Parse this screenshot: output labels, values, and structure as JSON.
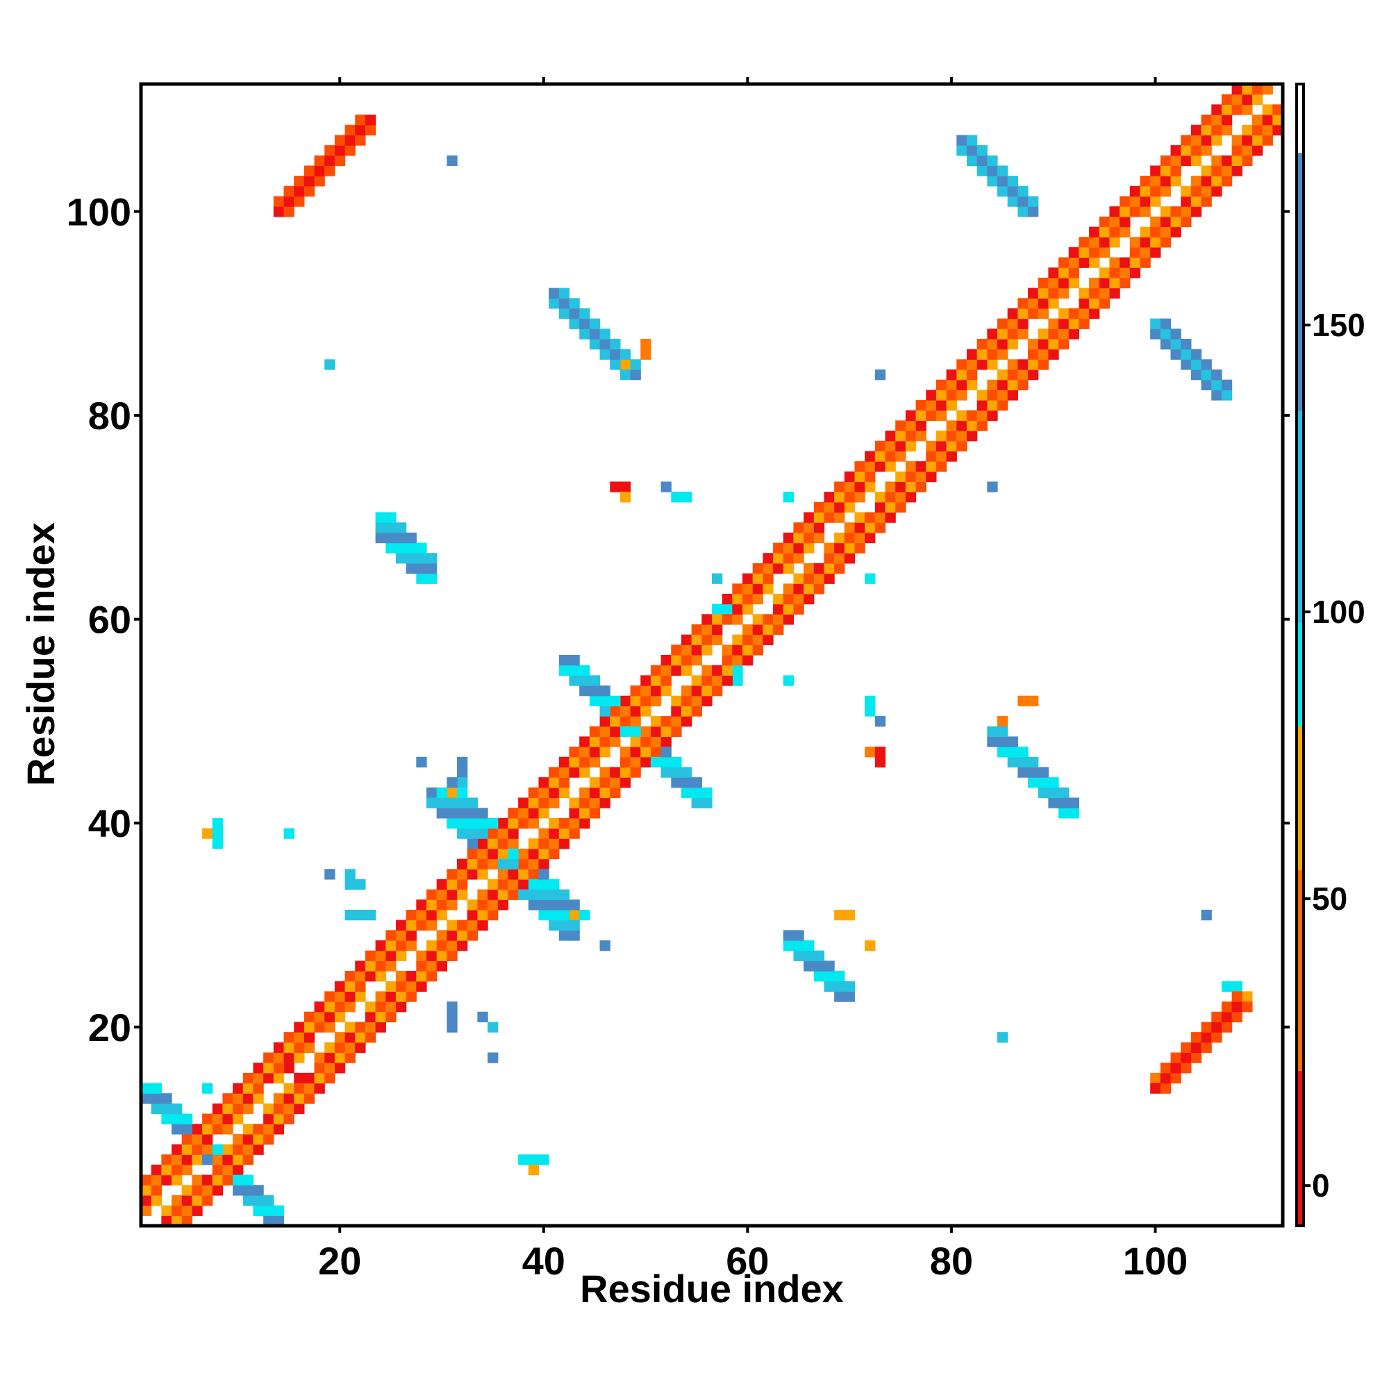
{
  "chart_data": {
    "type": "heatmap",
    "xlabel": "Residue index",
    "ylabel": "Residue index",
    "x_range": [
      1,
      112
    ],
    "y_range": [
      1,
      112
    ],
    "x_ticks": [
      20,
      40,
      60,
      80,
      100
    ],
    "y_ticks": [
      20,
      40,
      60,
      80,
      100
    ],
    "colorbar": {
      "ticks": [
        0,
        50,
        100,
        150
      ],
      "range": [
        -7,
        192
      ],
      "bands": [
        {
          "from": -7,
          "to": 20,
          "color": "#ee1111"
        },
        {
          "from": 20,
          "to": 55,
          "color": "#ff6a00"
        },
        {
          "from": 55,
          "to": 80,
          "color": "#ffa500"
        },
        {
          "from": 80,
          "to": 98,
          "color": "#00e8f0"
        },
        {
          "from": 98,
          "to": 135,
          "color": "#27c2e0"
        },
        {
          "from": 135,
          "to": 180,
          "color": "#4a88c6"
        },
        {
          "from": 180,
          "to": 192,
          "color": "#ffffff"
        }
      ]
    },
    "palette": {
      "red": "#ee1111",
      "orange_red": "#ff4d00",
      "orange": "#ff7a00",
      "amber": "#ffa500",
      "cyan": "#00e8f0",
      "sky": "#27c2e0",
      "steel": "#4a88c6"
    },
    "lines": [
      {
        "from": [
          1,
          1
        ],
        "to": [
          112,
          112
        ],
        "halfwidth": 3,
        "skip_center": true,
        "palette": [
          "red",
          "orange",
          "orange_red",
          "amber"
        ]
      },
      {
        "from": [
          14,
          100
        ],
        "to": [
          23,
          109
        ],
        "halfwidth": 1.4,
        "palette": [
          "red",
          "orange_red"
        ]
      },
      {
        "from": [
          100,
          14
        ],
        "to": [
          109,
          23
        ],
        "halfwidth": 1.4,
        "palette": [
          "red",
          "orange_red"
        ]
      },
      {
        "from": [
          1,
          14
        ],
        "to": [
          14,
          1
        ],
        "halfwidth": 1.2,
        "palette": [
          "sky",
          "steel",
          "cyan"
        ]
      },
      {
        "from": [
          41,
          92
        ],
        "to": [
          49,
          84
        ],
        "halfwidth": 1.2,
        "palette": [
          "sky",
          "steel"
        ]
      },
      {
        "from": [
          81,
          107
        ],
        "to": [
          88,
          100
        ],
        "halfwidth": 1.2,
        "palette": [
          "steel",
          "sky"
        ]
      },
      {
        "from": [
          100,
          89
        ],
        "to": [
          107,
          82
        ],
        "halfwidth": 1.2,
        "palette": [
          "steel",
          "sky"
        ]
      },
      {
        "from": [
          84,
          49
        ],
        "to": [
          92,
          41
        ],
        "halfwidth": 1.2,
        "palette": [
          "steel",
          "sky",
          "cyan"
        ]
      },
      {
        "from": [
          42,
          56
        ],
        "to": [
          56,
          42
        ],
        "halfwidth": 1.2,
        "palette": [
          "sky",
          "cyan",
          "steel"
        ]
      },
      {
        "from": [
          24,
          70
        ],
        "to": [
          29,
          64
        ],
        "halfwidth": 1.3,
        "palette": [
          "sky",
          "cyan",
          "steel"
        ]
      },
      {
        "from": [
          64,
          29
        ],
        "to": [
          70,
          23
        ],
        "halfwidth": 1.3,
        "palette": [
          "sky",
          "cyan",
          "steel"
        ]
      },
      {
        "from": [
          30,
          43
        ],
        "to": [
          43,
          30
        ],
        "halfwidth": 1.5,
        "palette": [
          "sky",
          "cyan",
          "steel"
        ]
      }
    ],
    "points": [
      [
        15,
        16,
        "red"
      ],
      [
        16,
        15,
        "red"
      ],
      [
        31,
        105,
        "steel"
      ],
      [
        19,
        85,
        "sky"
      ],
      [
        48,
        85,
        "amber"
      ],
      [
        50,
        86,
        "orange"
      ],
      [
        50,
        87,
        "orange"
      ],
      [
        73,
        84,
        "steel"
      ],
      [
        84,
        73,
        "steel"
      ],
      [
        47,
        73,
        "red"
      ],
      [
        48,
        73,
        "red"
      ],
      [
        48,
        72,
        "amber"
      ],
      [
        52,
        73,
        "steel"
      ],
      [
        53,
        72,
        "cyan"
      ],
      [
        54,
        72,
        "cyan"
      ],
      [
        64,
        72,
        "cyan"
      ],
      [
        57,
        64,
        "sky"
      ],
      [
        72,
        64,
        "cyan"
      ],
      [
        57,
        61,
        "cyan"
      ],
      [
        58,
        61,
        "cyan"
      ],
      [
        59,
        55,
        "cyan"
      ],
      [
        59,
        54,
        "cyan"
      ],
      [
        64,
        54,
        "cyan"
      ],
      [
        72,
        52,
        "cyan"
      ],
      [
        72,
        51,
        "cyan"
      ],
      [
        73,
        50,
        "steel"
      ],
      [
        72,
        47,
        "orange"
      ],
      [
        73,
        47,
        "red"
      ],
      [
        73,
        46,
        "red"
      ],
      [
        87,
        52,
        "orange"
      ],
      [
        88,
        52,
        "orange"
      ],
      [
        85,
        50,
        "orange"
      ],
      [
        7,
        39,
        "amber"
      ],
      [
        8,
        39,
        "cyan"
      ],
      [
        8,
        40,
        "cyan"
      ],
      [
        8,
        38,
        "cyan"
      ],
      [
        19,
        35,
        "steel"
      ],
      [
        21,
        35,
        "sky"
      ],
      [
        21,
        34,
        "sky"
      ],
      [
        22,
        34,
        "sky"
      ],
      [
        21,
        31,
        "sky"
      ],
      [
        22,
        31,
        "sky"
      ],
      [
        23,
        31,
        "sky"
      ],
      [
        28,
        46,
        "steel"
      ],
      [
        32,
        46,
        "steel"
      ],
      [
        32,
        45,
        "steel"
      ],
      [
        32,
        44,
        "sky"
      ],
      [
        29,
        43,
        "steel"
      ],
      [
        31,
        43,
        "amber"
      ],
      [
        43,
        31,
        "amber"
      ],
      [
        43,
        29,
        "steel"
      ],
      [
        46,
        28,
        "steel"
      ],
      [
        31,
        22,
        "steel"
      ],
      [
        31,
        21,
        "steel"
      ],
      [
        31,
        20,
        "steel"
      ],
      [
        34,
        21,
        "steel"
      ],
      [
        35,
        20,
        "sky"
      ],
      [
        35,
        17,
        "steel"
      ],
      [
        85,
        19,
        "sky"
      ],
      [
        105,
        31,
        "steel"
      ],
      [
        38,
        7,
        "cyan"
      ],
      [
        39,
        7,
        "cyan"
      ],
      [
        40,
        7,
        "cyan"
      ],
      [
        39,
        6,
        "amber"
      ],
      [
        15,
        39,
        "cyan"
      ],
      [
        70,
        31,
        "amber"
      ],
      [
        69,
        31,
        "amber"
      ],
      [
        72,
        28,
        "amber"
      ],
      [
        7,
        14,
        "cyan"
      ],
      [
        107,
        24,
        "cyan"
      ],
      [
        108,
        24,
        "cyan"
      ],
      [
        109,
        23,
        "amber"
      ],
      [
        100,
        15,
        "orange"
      ]
    ]
  }
}
